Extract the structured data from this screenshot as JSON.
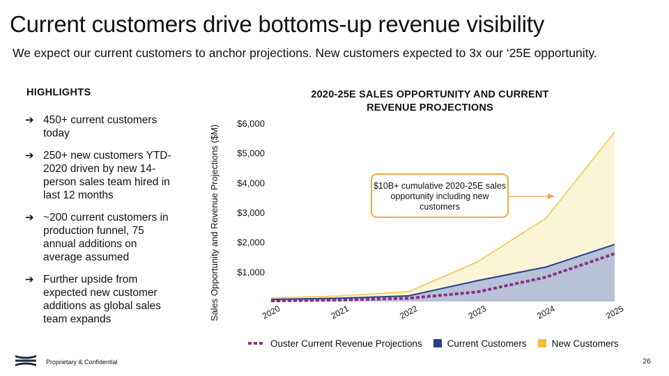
{
  "slide": {
    "title": "Current customers drive bottoms-up revenue visibility",
    "subtitle": "We expect our current customers to anchor projections.  New customers expected to 3x our ‘25E opportunity.",
    "footer": "Proprietary  & Confidential",
    "page_number": "26"
  },
  "highlights": {
    "heading": "HIGHLIGHTS",
    "bullet_glyph": "➔",
    "items": [
      "450+ current customers today",
      "250+ new customers YTD-2020 driven by new 14-person sales team hired in last 12 months",
      "~200 current customers in production funnel, 75 annual additions on average assumed",
      "Further upside from expected new customer additions as global sales team expands"
    ]
  },
  "callout": {
    "text": "$10B+ cumulative 2020-25E sales opportunity including new customers"
  },
  "chart_data": {
    "type": "area",
    "title": "2020-25E SALES OPPORTUNITY AND CURRENT REVENUE PROJECTIONS",
    "title_line1": "2020-25E SALES OPPORTUNITY AND CURRENT",
    "title_line2": "REVENUE PROJECTIONS",
    "xlabel": "",
    "ylabel": "Sales Opportunity and Revenue Projections ($M)",
    "categories": [
      "2020",
      "2021",
      "2022",
      "2023",
      "2024",
      "2025"
    ],
    "ylim": [
      0,
      6000
    ],
    "yticks": [
      1000,
      2000,
      3000,
      4000,
      5000,
      6000
    ],
    "ytick_labels": [
      "$1,000",
      "$2,000",
      "$3,000",
      "$4,000",
      "$5,000",
      "$6,000"
    ],
    "series": [
      {
        "name": "New Customers",
        "kind": "area",
        "color": "#f1c232",
        "fill": "#fbf5d8",
        "values": [
          120,
          190,
          330,
          1330,
          2800,
          5700
        ]
      },
      {
        "name": "Current Customers",
        "kind": "area",
        "color": "#25418a",
        "fill": "#b7c2d8",
        "values": [
          70,
          110,
          190,
          700,
          1160,
          1920
        ]
      },
      {
        "name": "Ouster Current Revenue Projections",
        "kind": "line",
        "color": "#8e2e83",
        "values": [
          20,
          50,
          110,
          320,
          820,
          1610
        ]
      }
    ],
    "legend": [
      "Ouster Current Revenue Projections",
      "Current Customers",
      "New Customers"
    ],
    "legend_position": "bottom"
  }
}
